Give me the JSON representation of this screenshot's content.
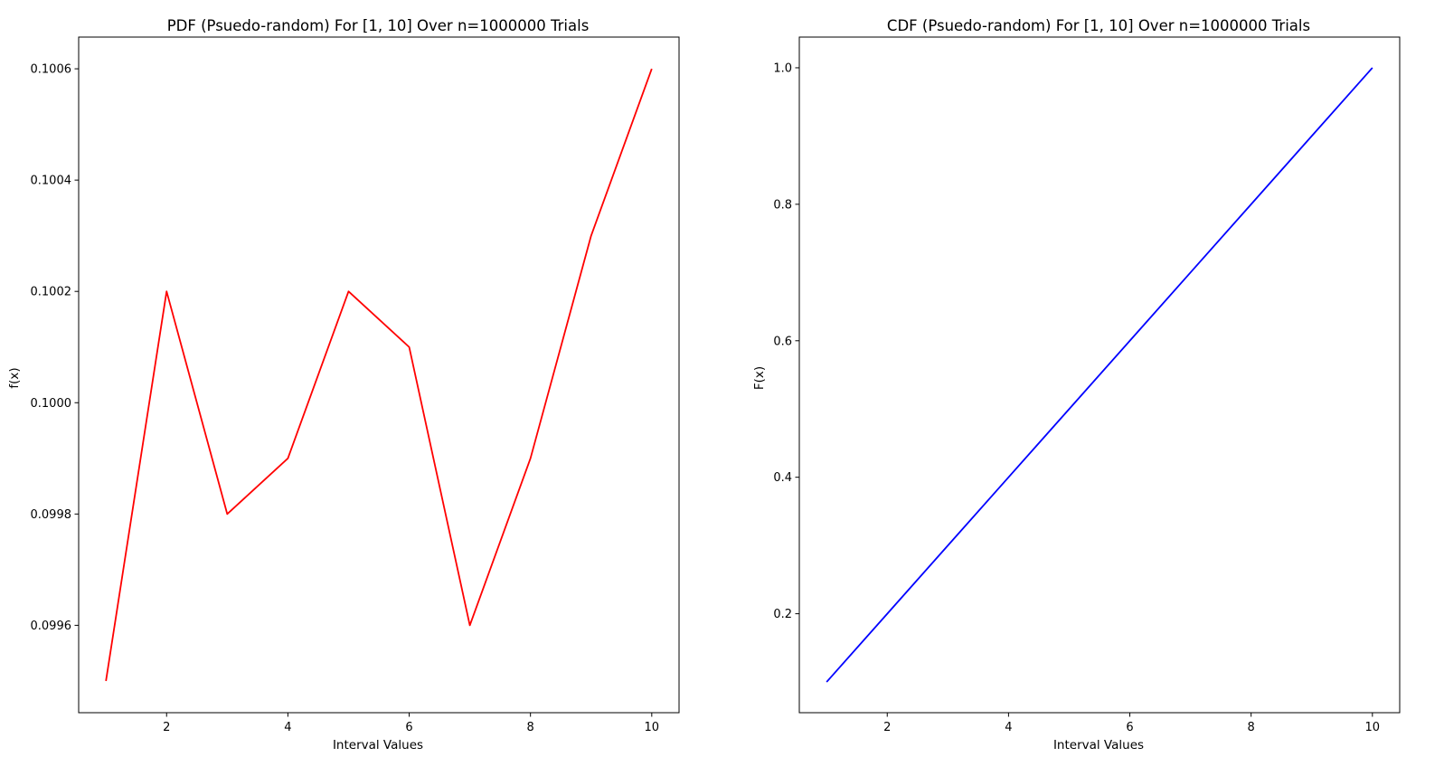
{
  "chart_data": [
    {
      "type": "line",
      "title": "PDF (Psuedo-random) For [1, 10] Over n=1000000 Trials",
      "xlabel": "Interval Values",
      "ylabel": "f(x)",
      "xlim": [
        0.55,
        10.45
      ],
      "ylim": [
        0.099443,
        0.100657
      ],
      "xticks": [
        2,
        4,
        6,
        8,
        10
      ],
      "xtick_labels": [
        "2",
        "4",
        "6",
        "8",
        "10"
      ],
      "yticks": [
        0.0996,
        0.0998,
        0.1,
        0.1002,
        0.1004,
        0.1006
      ],
      "ytick_labels": [
        "0.0996",
        "0.0998",
        "0.1000",
        "0.1002",
        "0.1004",
        "0.1006"
      ],
      "grid": false,
      "series": [
        {
          "color": "#ff0000",
          "x": [
            1,
            2,
            3,
            4,
            5,
            6,
            7,
            8,
            9,
            10
          ],
          "y": [
            0.0995,
            0.1002,
            0.0998,
            0.0999,
            0.1002,
            0.1001,
            0.0996,
            0.0999,
            0.1003,
            0.1006
          ]
        }
      ]
    },
    {
      "type": "line",
      "title": "CDF (Psuedo-random) For [1, 10] Over n=1000000 Trials",
      "xlabel": "Interval Values",
      "ylabel": "F(x)",
      "xlim": [
        0.55,
        10.45
      ],
      "ylim": [
        0.055,
        1.045
      ],
      "xticks": [
        2,
        4,
        6,
        8,
        10
      ],
      "xtick_labels": [
        "2",
        "4",
        "6",
        "8",
        "10"
      ],
      "yticks": [
        0.2,
        0.4,
        0.6,
        0.8,
        1.0
      ],
      "ytick_labels": [
        "0.2",
        "0.4",
        "0.6",
        "0.8",
        "1.0"
      ],
      "grid": false,
      "series": [
        {
          "color": "#0000ff",
          "x": [
            1,
            2,
            3,
            4,
            5,
            6,
            7,
            8,
            9,
            10
          ],
          "y": [
            0.1,
            0.2,
            0.3,
            0.4,
            0.5,
            0.6,
            0.7,
            0.8,
            0.9,
            1.0
          ]
        }
      ]
    }
  ]
}
